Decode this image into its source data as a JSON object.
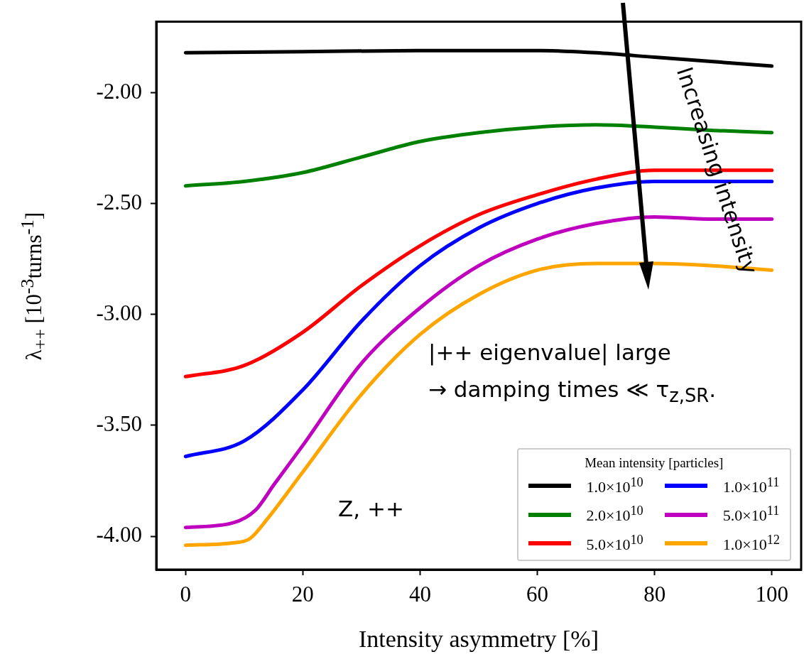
{
  "chart_data": {
    "type": "line",
    "xlabel": "Intensity asymmetry [%]",
    "ylabel": "λ$_{++}$ [10$^{-3}$turns$^{-1}$]",
    "legend_title": "Mean intensity [particles]",
    "legend": "bottom right",
    "grid": false,
    "marker": "none",
    "line_style": "solid",
    "xlim": [
      -5,
      105
    ],
    "xticks": [
      0,
      20,
      40,
      60,
      80,
      100
    ],
    "ylim": [
      -4.15,
      -1.68
    ],
    "yticks": [
      {
        "value": -2,
        "label": "-2.00"
      },
      {
        "value": -2.5,
        "label": "-2.50"
      },
      {
        "value": -3,
        "label": "-3.00"
      },
      {
        "value": -3.5,
        "label": "-3.50"
      },
      {
        "value": -4,
        "label": "-4.00"
      }
    ],
    "annotations": [
      "|++ eigenvalue| large",
      "→ damping times ≪ τ$_{z,SR}$.",
      "Increasing intensity",
      "Z, ++"
    ],
    "series": [
      {
        "name": "1.0×10$^{10}$",
        "color": "#000000",
        "x": [
          0,
          20,
          40,
          50,
          60,
          70,
          80,
          90,
          100
        ],
        "values": [
          -1.82,
          -1.815,
          -1.81,
          -1.81,
          -1.81,
          -1.82,
          -1.84,
          -1.86,
          -1.88
        ]
      },
      {
        "name": "2.0×10$^{10}$",
        "color": "#008000",
        "x": [
          0,
          10,
          20,
          30,
          40,
          50,
          60,
          70,
          80,
          90,
          100
        ],
        "values": [
          -2.42,
          -2.4,
          -2.36,
          -2.29,
          -2.22,
          -2.18,
          -2.155,
          -2.145,
          -2.155,
          -2.17,
          -2.18
        ]
      },
      {
        "name": "5.0×10$^{10}$",
        "color": "#ff0000",
        "x": [
          0,
          10,
          20,
          30,
          40,
          50,
          60,
          70,
          80,
          90,
          100
        ],
        "values": [
          -3.28,
          -3.23,
          -3.08,
          -2.87,
          -2.69,
          -2.55,
          -2.46,
          -2.39,
          -2.35,
          -2.35,
          -2.35
        ]
      },
      {
        "name": "1.0×10$^{11}$",
        "color": "#0000ff",
        "x": [
          0,
          10,
          20,
          30,
          40,
          50,
          60,
          70,
          80,
          90,
          100
        ],
        "values": [
          -3.64,
          -3.57,
          -3.34,
          -3.03,
          -2.78,
          -2.61,
          -2.5,
          -2.43,
          -2.4,
          -2.4,
          -2.4
        ]
      },
      {
        "name": "5.0×10$^{11}$",
        "color": "#bf00bf",
        "x": [
          0,
          8,
          12,
          15,
          20,
          30,
          40,
          50,
          60,
          70,
          80,
          90,
          100
        ],
        "values": [
          -3.96,
          -3.94,
          -3.88,
          -3.77,
          -3.59,
          -3.22,
          -2.97,
          -2.78,
          -2.66,
          -2.59,
          -2.56,
          -2.57,
          -2.57
        ]
      },
      {
        "name": "1.0×10$^{12}$",
        "color": "#ffa500",
        "x": [
          0,
          8,
          11,
          14,
          20,
          30,
          40,
          50,
          60,
          70,
          80,
          90,
          100
        ],
        "values": [
          -4.04,
          -4.03,
          -4.01,
          -3.92,
          -3.71,
          -3.36,
          -3.09,
          -2.91,
          -2.8,
          -2.77,
          -2.77,
          -2.78,
          -2.8
        ]
      }
    ]
  }
}
